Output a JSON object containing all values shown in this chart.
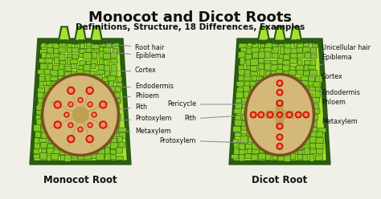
{
  "title": "Monocot and Dicot Roots",
  "subtitle": "Definitions, Structure, 18 Differences, Examples",
  "bg_color": "#f0f0e8",
  "title_color": "#111111",
  "subtitle_color": "#111111",
  "monocot_label": "Monocot Root",
  "dicot_label": "Dicot Root",
  "label_color": "#111111",
  "line_color": "#888888",
  "dark_green": "#2a5c12",
  "mid_green": "#4a8a10",
  "bright_green": "#7ec820",
  "lime_green": "#a8e030",
  "cell_dark": "#1a4008",
  "brown_ring": "#7a5020",
  "stele_tan": "#d4b878",
  "stele_dark": "#c0a050",
  "red_dot": "#cc1800",
  "red_dot_center": "#ff8866",
  "white_center": "#f5f0e0"
}
